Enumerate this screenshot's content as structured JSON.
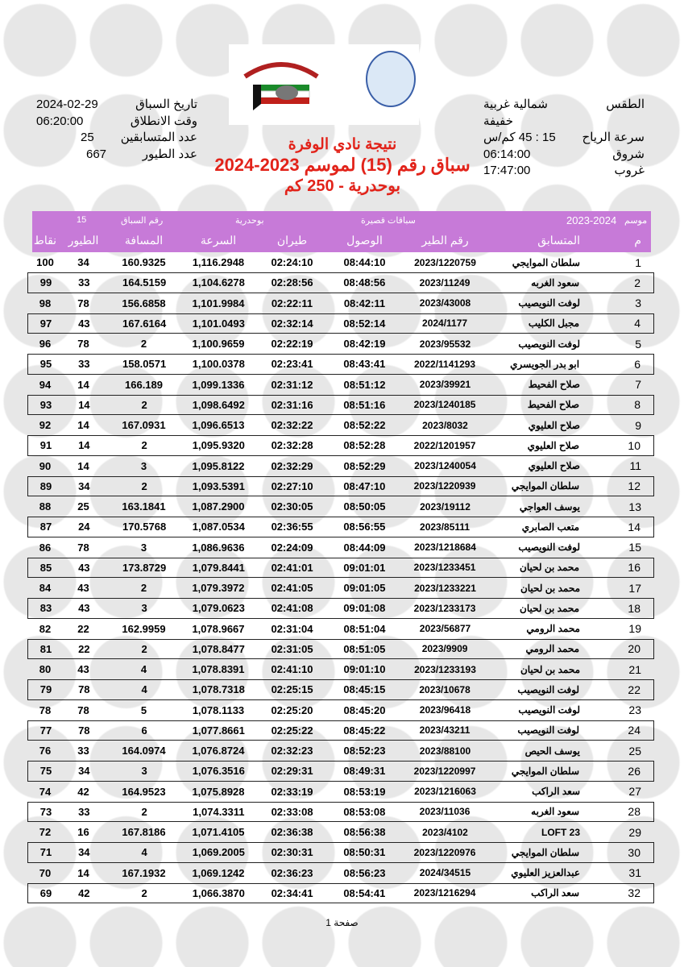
{
  "header_left": {
    "race_date_label": "تاريخ السباق",
    "race_date": "2024-02-29",
    "start_time_label": "وقت الانطلاق",
    "start_time": "06:20:00",
    "competitors_label": "عدد المتسابقين",
    "competitors": "25",
    "birds_label": "عدد الطيور",
    "birds": "667"
  },
  "header_right": {
    "weather_label": "الطقس",
    "weather": "شمالية غربية خفيفة",
    "wind_label": "سرعة الرياح",
    "wind": "15 : 45 كم/س",
    "sunrise_label": "شروق",
    "sunrise": "06:14:00",
    "sunset_label": "غروب",
    "sunset": "17:47:00"
  },
  "title": {
    "line1": "نتيجة نادي الوفرة",
    "line2": "سباق رقم (15) لموسم 2023-2024",
    "line3": "بوحدرية - 250 كم"
  },
  "table_header": {
    "season_label": "موسم",
    "season": "2023-2024",
    "category": "سباقات قصيرة",
    "location": "بوحدرية",
    "race_no_label": "رقم السباق",
    "race_no": "15",
    "columns": [
      "نقاط",
      "الطيور",
      "المسافة",
      "السرعة",
      "طيران",
      "الوصول",
      "رقم الطير",
      "المتسابق",
      "م"
    ]
  },
  "rows": [
    [
      "100",
      "34",
      "160.9325",
      "1,116.2948",
      "02:24:10",
      "08:44:10",
      "2023/1220759",
      "سلطان الموايجي",
      "1"
    ],
    [
      "99",
      "33",
      "164.5159",
      "1,104.6278",
      "02:28:56",
      "08:48:56",
      "2023/11249",
      "سعود الغربه",
      "2"
    ],
    [
      "98",
      "78",
      "156.6858",
      "1,101.9984",
      "02:22:11",
      "08:42:11",
      "2023/43008",
      "لوفت النويصيب",
      "3"
    ],
    [
      "97",
      "43",
      "167.6164",
      "1,101.0493",
      "02:32:14",
      "08:52:14",
      "2024/1177",
      "مجبل الكليب",
      "4"
    ],
    [
      "96",
      "78",
      "2",
      "1,100.9659",
      "02:22:19",
      "08:42:19",
      "2023/95532",
      "لوفت النويصيب",
      "5"
    ],
    [
      "95",
      "33",
      "158.0571",
      "1,100.0378",
      "02:23:41",
      "08:43:41",
      "2022/1141293",
      "ابو بدر الجويسري",
      "6"
    ],
    [
      "94",
      "14",
      "166.189",
      "1,099.1336",
      "02:31:12",
      "08:51:12",
      "2023/39921",
      "صلاح الفحيط",
      "7"
    ],
    [
      "93",
      "14",
      "2",
      "1,098.6492",
      "02:31:16",
      "08:51:16",
      "2023/1240185",
      "صلاح الفحيط",
      "8"
    ],
    [
      "92",
      "14",
      "167.0931",
      "1,096.6513",
      "02:32:22",
      "08:52:22",
      "2023/8032",
      "صلاح العليوي",
      "9"
    ],
    [
      "91",
      "14",
      "2",
      "1,095.9320",
      "02:32:28",
      "08:52:28",
      "2022/1201957",
      "صلاح العليوي",
      "10"
    ],
    [
      "90",
      "14",
      "3",
      "1,095.8122",
      "02:32:29",
      "08:52:29",
      "2023/1240054",
      "صلاح العليوي",
      "11"
    ],
    [
      "89",
      "34",
      "2",
      "1,093.5391",
      "02:27:10",
      "08:47:10",
      "2023/1220939",
      "سلطان الموايجي",
      "12"
    ],
    [
      "88",
      "25",
      "163.1841",
      "1,087.2900",
      "02:30:05",
      "08:50:05",
      "2023/19112",
      "يوسف العواجي",
      "13"
    ],
    [
      "87",
      "24",
      "170.5768",
      "1,087.0534",
      "02:36:55",
      "08:56:55",
      "2023/85111",
      "متعب الصابري",
      "14"
    ],
    [
      "86",
      "78",
      "3",
      "1,086.9636",
      "02:24:09",
      "08:44:09",
      "2023/1218684",
      "لوفت النويصيب",
      "15"
    ],
    [
      "85",
      "43",
      "173.8729",
      "1,079.8441",
      "02:41:01",
      "09:01:01",
      "2023/1233451",
      "محمد بن لحيان",
      "16"
    ],
    [
      "84",
      "43",
      "2",
      "1,079.3972",
      "02:41:05",
      "09:01:05",
      "2023/1233221",
      "محمد بن لحيان",
      "17"
    ],
    [
      "83",
      "43",
      "3",
      "1,079.0623",
      "02:41:08",
      "09:01:08",
      "2023/1233173",
      "محمد بن لحيان",
      "18"
    ],
    [
      "82",
      "22",
      "162.9959",
      "1,078.9667",
      "02:31:04",
      "08:51:04",
      "2023/56877",
      "محمد الرومي",
      "19"
    ],
    [
      "81",
      "22",
      "2",
      "1,078.8477",
      "02:31:05",
      "08:51:05",
      "2023/9909",
      "محمد الرومي",
      "20"
    ],
    [
      "80",
      "43",
      "4",
      "1,078.8391",
      "02:41:10",
      "09:01:10",
      "2023/1233193",
      "محمد بن لحيان",
      "21"
    ],
    [
      "79",
      "78",
      "4",
      "1,078.7318",
      "02:25:15",
      "08:45:15",
      "2023/10678",
      "لوفت النويصيب",
      "22"
    ],
    [
      "78",
      "78",
      "5",
      "1,078.1133",
      "02:25:20",
      "08:45:20",
      "2023/96418",
      "لوفت النويصيب",
      "23"
    ],
    [
      "77",
      "78",
      "6",
      "1,077.8661",
      "02:25:22",
      "08:45:22",
      "2023/43211",
      "لوفت النويصيب",
      "24"
    ],
    [
      "76",
      "33",
      "164.0974",
      "1,076.8724",
      "02:32:23",
      "08:52:23",
      "2023/88100",
      "يوسف الحيص",
      "25"
    ],
    [
      "75",
      "34",
      "3",
      "1,076.3516",
      "02:29:31",
      "08:49:31",
      "2023/1220997",
      "سلطان الموايجي",
      "26"
    ],
    [
      "74",
      "42",
      "164.9523",
      "1,075.8928",
      "02:33:19",
      "08:53:19",
      "2023/1216063",
      "سعد الراكب",
      "27"
    ],
    [
      "73",
      "33",
      "2",
      "1,074.3311",
      "02:33:08",
      "08:53:08",
      "2023/11036",
      "سعود الغربه",
      "28"
    ],
    [
      "72",
      "16",
      "167.8186",
      "1,071.4105",
      "02:36:38",
      "08:56:38",
      "2023/4102",
      "LOFT 23",
      "29"
    ],
    [
      "71",
      "34",
      "4",
      "1,069.2005",
      "02:30:31",
      "08:50:31",
      "2023/1220976",
      "سلطان الموايجي",
      "30"
    ],
    [
      "70",
      "14",
      "167.1932",
      "1,069.1242",
      "02:36:23",
      "08:56:23",
      "2024/34515",
      "عبدالعزيز العليوي",
      "31"
    ],
    [
      "69",
      "42",
      "2",
      "1,066.3870",
      "02:34:41",
      "08:54:41",
      "2023/1216294",
      "سعد الراكب",
      "32"
    ]
  ],
  "footer": {
    "page_label": "صفحة",
    "page": "1"
  },
  "colors": {
    "title": "#e2231a",
    "header_band": "#c77ad8"
  }
}
